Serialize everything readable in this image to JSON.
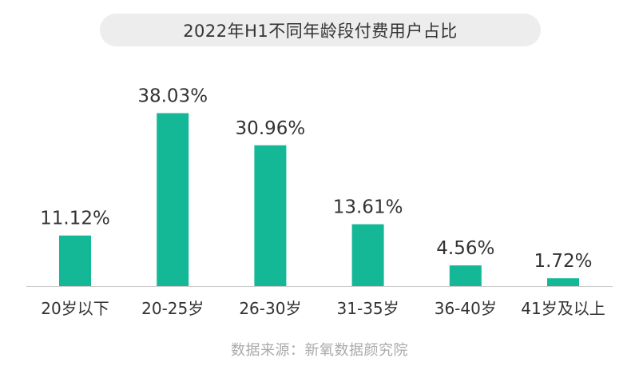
{
  "colors": {
    "bar": "#14b896",
    "axis": "#cccccc",
    "title_bg": "#ededed",
    "text": "#333333",
    "source_text": "#aaaaaa"
  },
  "source": "数据来源：新氧数据颜究院",
  "chart_data": {
    "type": "bar",
    "title": "2022年H1不同年龄段付费用户占比",
    "xlabel": "",
    "ylabel": "",
    "categories": [
      "20岁以下",
      "20-25岁",
      "26-30岁",
      "31-35岁",
      "36-40岁",
      "41岁及以上"
    ],
    "values": [
      11.12,
      38.03,
      30.96,
      13.61,
      4.56,
      1.72
    ],
    "value_labels": [
      "11.12%",
      "38.03%",
      "30.96%",
      "13.61%",
      "4.56%",
      "1.72%"
    ],
    "unit": "%",
    "ylim": [
      0,
      40
    ],
    "grid": false,
    "legend": "none"
  }
}
